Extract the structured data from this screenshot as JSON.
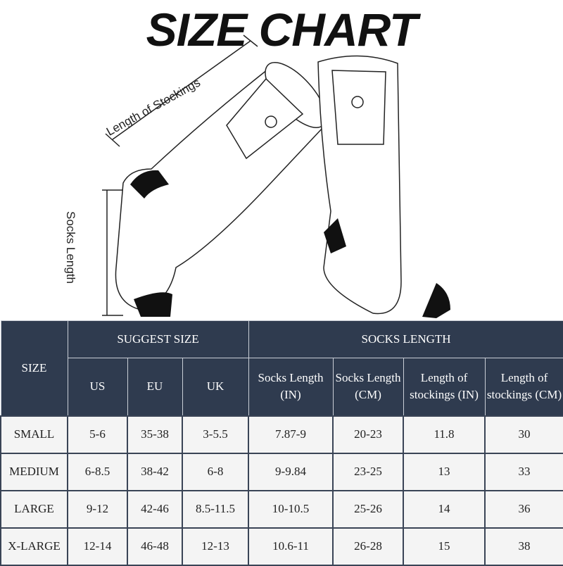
{
  "title": "SIZE CHART",
  "labels": {
    "stockings": "Length of Stockings",
    "socks": "Socks Length"
  },
  "colors": {
    "header_bg": "#2f3b4f",
    "cell_bg": "#f4f4f4"
  },
  "table": {
    "size_header": "SIZE",
    "group_suggest": "SUGGEST SIZE",
    "group_length": "SOCKS LENGTH",
    "sub": [
      "US",
      "EU",
      "UK",
      "Socks Length (IN)",
      "Socks Length (CM)",
      "Length of stockings (IN)",
      "Length of stockings (CM)"
    ],
    "rows": [
      [
        "SMALL",
        "5-6",
        "35-38",
        "3-5.5",
        "7.87-9",
        "20-23",
        "11.8",
        "30"
      ],
      [
        "MEDIUM",
        "6-8.5",
        "38-42",
        "6-8",
        "9-9.84",
        "23-25",
        "13",
        "33"
      ],
      [
        "LARGE",
        "9-12",
        "42-46",
        "8.5-11.5",
        "10-10.5",
        "25-26",
        "14",
        "36"
      ],
      [
        "X-LARGE",
        "12-14",
        "46-48",
        "12-13",
        "10.6-11",
        "26-28",
        "15",
        "38"
      ]
    ]
  }
}
